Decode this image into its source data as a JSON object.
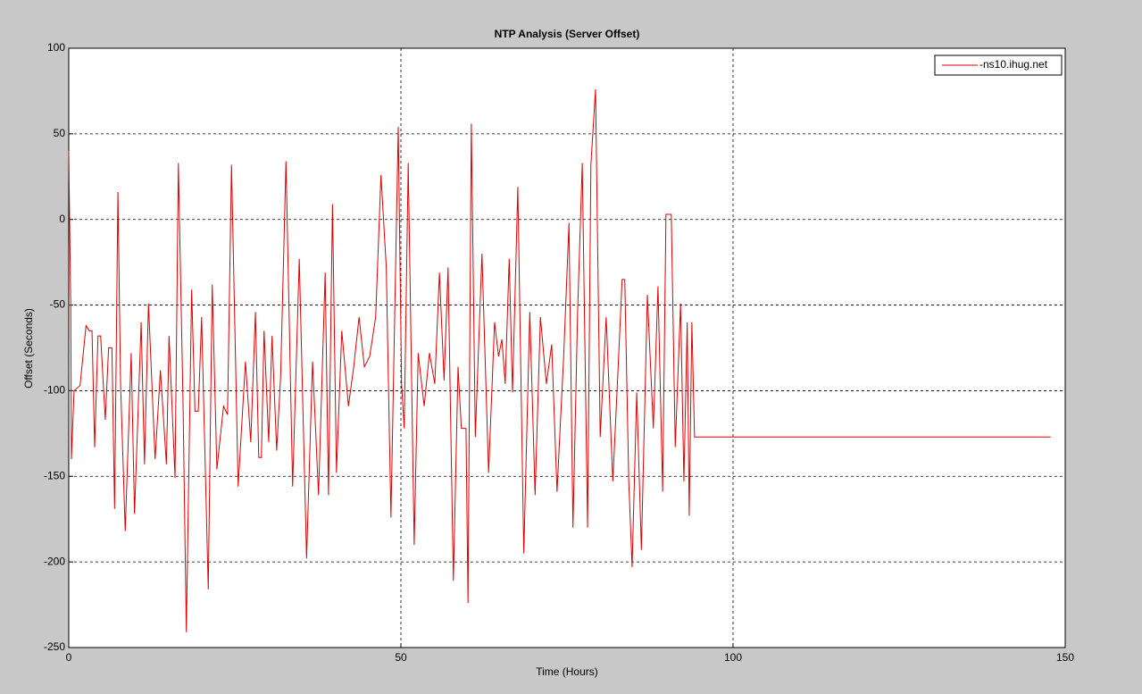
{
  "chart_data": {
    "type": "line",
    "title": "NTP Analysis (Server Offset)",
    "x_label": "Time (Hours)",
    "y_label": "Offset (Seconds)",
    "x": [
      0.0,
      0.1,
      0.3,
      0.4,
      0.8,
      1.7,
      2.6,
      3.1,
      3.5,
      3.9,
      4.4,
      4.8,
      5.5,
      6.0,
      6.5,
      6.9,
      7.4,
      7.8,
      8.5,
      9.4,
      9.9,
      10.9,
      11.4,
      12.0,
      13.0,
      13.8,
      14.7,
      15.1,
      16.0,
      16.5,
      17.2,
      17.7,
      18.5,
      19.0,
      19.5,
      20.0,
      21.0,
      21.6,
      22.3,
      23.3,
      23.9,
      24.5,
      25.5,
      26.6,
      27.4,
      28.1,
      28.6,
      29.0,
      29.4,
      30.1,
      30.6,
      31.3,
      31.9,
      32.7,
      33.7,
      34.7,
      35.8,
      36.7,
      37.6,
      38.6,
      39.1,
      39.7,
      40.3,
      41.1,
      42.1,
      42.9,
      43.7,
      44.5,
      45.3,
      46.2,
      47.0,
      47.8,
      48.5,
      49.2,
      49.6,
      50.1,
      50.5,
      51.1,
      52.0,
      52.6,
      53.5,
      54.3,
      55.1,
      55.8,
      56.5,
      57.1,
      57.9,
      58.6,
      59.1,
      59.8,
      60.1,
      60.6,
      61.2,
      62.2,
      63.2,
      64.1,
      64.7,
      65.2,
      65.7,
      66.3,
      66.8,
      67.6,
      68.5,
      69.4,
      70.2,
      71.0,
      71.9,
      72.7,
      73.5,
      74.5,
      75.3,
      75.9,
      76.6,
      77.3,
      78.1,
      78.6,
      79.3,
      80.0,
      80.9,
      81.9,
      82.8,
      83.3,
      83.7,
      84.3,
      84.8,
      85.5,
      86.2,
      87.1,
      88.0,
      88.7,
      89.4,
      89.9,
      90.7,
      91.3,
      92.1,
      92.6,
      93.1,
      93.4,
      93.8,
      94.2,
      147.8
    ],
    "series": [
      {
        "name": "-ns10.ihug.net",
        "color": "#e00000",
        "values": [
          40,
          8,
          -49,
          -140,
          -100,
          -97,
          -62,
          -65,
          -65,
          -133,
          -68,
          -68,
          -117,
          -75,
          -75,
          -169,
          16,
          -96,
          -182,
          -78,
          -172,
          -60,
          -143,
          -49,
          -140,
          -88,
          -143,
          -68,
          -151,
          33,
          -106,
          -241,
          -41,
          -112,
          -112,
          -57,
          -216,
          -38,
          -146,
          -109,
          -114,
          32,
          -156,
          -83,
          -130,
          -54,
          -139,
          -139,
          -65,
          -130,
          -68,
          -135,
          -91,
          34,
          -156,
          -23,
          -198,
          -83,
          -161,
          -31,
          -161,
          9,
          -148,
          -65,
          -109,
          -86,
          -57,
          -86,
          -80,
          -57,
          26,
          -28,
          -174,
          -28,
          54,
          -96,
          -122,
          33,
          -190,
          -78,
          -109,
          -78,
          -96,
          -31,
          -94,
          -28,
          -211,
          -86,
          -122,
          -122,
          -224,
          56,
          -127,
          -20,
          -148,
          -60,
          -80,
          -70,
          -96,
          -23,
          -101,
          19,
          -195,
          -54,
          -161,
          -57,
          -96,
          -73,
          -159,
          -80,
          -2,
          -180,
          -54,
          33,
          -180,
          32,
          76,
          -127,
          -57,
          -153,
          -78,
          -35,
          -35,
          -153,
          -203,
          -101,
          -193,
          -44,
          -122,
          -39,
          -159,
          3,
          3,
          -133,
          -49,
          -153,
          -60,
          -173,
          -60,
          -127,
          -127
        ]
      }
    ],
    "xlim": [
      0,
      150
    ],
    "xticks": [
      0,
      50,
      100,
      150
    ],
    "ylim": [
      -250,
      100
    ],
    "yticks": [
      -250,
      -200,
      -150,
      -100,
      -50,
      0,
      50,
      100
    ],
    "grid": true,
    "legend": "upper right"
  }
}
